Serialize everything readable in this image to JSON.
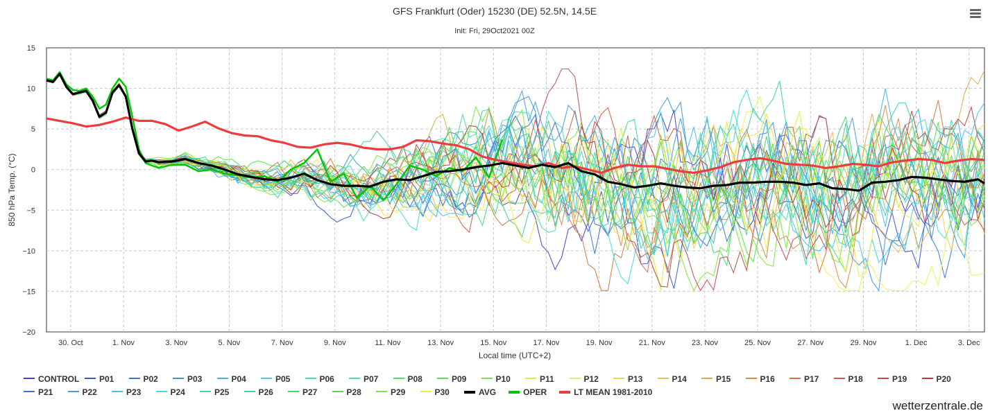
{
  "menu": {
    "icon": "hamburger-menu-icon"
  },
  "credit": "wetterzentrale.de",
  "chart_data": {
    "type": "line",
    "title": "GFS Frankfurt (Oder) 15230 (DE) 52.5N, 14.5E",
    "subtitle": "Init: Fri, 29Oct2021 00Z",
    "xlabel": "Local time (UTC+2)",
    "ylabel": "850 hPa Temp. (°C)",
    "ylim": [
      -20,
      15
    ],
    "yticks": [
      "15",
      "10",
      "5",
      "0",
      "−5",
      "−10",
      "−15",
      "−20"
    ],
    "xlim": [
      "2021-10-29T02:00",
      "2021-12-03T14:00"
    ],
    "xticks": [
      {
        "label": "30. Oct",
        "date": "2021-10-30"
      },
      {
        "label": "1. Nov",
        "date": "2021-11-01"
      },
      {
        "label": "3. Nov",
        "date": "2021-11-03"
      },
      {
        "label": "5. Nov",
        "date": "2021-11-05"
      },
      {
        "label": "7. Nov",
        "date": "2021-11-07"
      },
      {
        "label": "9. Nov",
        "date": "2021-11-09"
      },
      {
        "label": "11. Nov",
        "date": "2021-11-11"
      },
      {
        "label": "13. Nov",
        "date": "2021-11-13"
      },
      {
        "label": "15. Nov",
        "date": "2021-11-15"
      },
      {
        "label": "17. Nov",
        "date": "2021-11-17"
      },
      {
        "label": "19. Nov",
        "date": "2021-11-19"
      },
      {
        "label": "21. Nov",
        "date": "2021-11-21"
      },
      {
        "label": "23. Nov",
        "date": "2021-11-23"
      },
      {
        "label": "25. Nov",
        "date": "2021-11-25"
      },
      {
        "label": "27. Nov",
        "date": "2021-11-27"
      },
      {
        "label": "29. Nov",
        "date": "2021-11-29"
      },
      {
        "label": "1. Dec",
        "date": "2021-12-01"
      },
      {
        "label": "3. Dec",
        "date": "2021-12-03"
      }
    ],
    "grid": true,
    "legend_position": "bottom",
    "ensemble_members": {
      "names": [
        "CONTROL",
        "P01",
        "P02",
        "P03",
        "P04",
        "P05",
        "P06",
        "P07",
        "P08",
        "P09",
        "P10",
        "P11",
        "P12",
        "P13",
        "P14",
        "P15",
        "P16",
        "P17",
        "P18",
        "P19",
        "P20",
        "P21",
        "P22",
        "P23",
        "P24",
        "P25",
        "P26",
        "P27",
        "P28",
        "P29",
        "P30"
      ],
      "colors": [
        "#4a3fc9",
        "#3a55d6",
        "#3f74d6",
        "#3f96d9",
        "#3ab6e0",
        "#3fd0e8",
        "#3fe0d0",
        "#3fe6a8",
        "#3fe07a",
        "#4ce84a",
        "#7ae83a",
        "#e6ea3a",
        "#f0ee58",
        "#e8d84a",
        "#e8c04e",
        "#e0a84a",
        "#d88c3e",
        "#d8743a",
        "#cc5a3e",
        "#c04a44",
        "#b43a3a",
        "#3f6fd6",
        "#3f9fe0",
        "#40c0f0",
        "#40dcd6",
        "#3ed6b6",
        "#3ed49a",
        "#3ed47a",
        "#5ad64a",
        "#8ee040",
        "#ecec40"
      ]
    },
    "series": [
      {
        "name": "AVG",
        "color": "#000000",
        "x": [
          "2021-10-29T02:00",
          "2021-10-29T08:00",
          "2021-10-29T14:00",
          "2021-10-29T20:00",
          "2021-10-30T02:00",
          "2021-10-30T08:00",
          "2021-10-30T14:00",
          "2021-10-30T20:00",
          "2021-10-31T02:00",
          "2021-10-31T08:00",
          "2021-10-31T14:00",
          "2021-10-31T20:00",
          "2021-11-01T02:00",
          "2021-11-01T08:00",
          "2021-11-01T14:00",
          "2021-11-01T20:00",
          "2021-11-02T02:00",
          "2021-11-02T08:00",
          "2021-11-02T20:00",
          "2021-11-03T08:00",
          "2021-11-03T20:00",
          "2021-11-04T08:00",
          "2021-11-04T20:00",
          "2021-11-05T08:00",
          "2021-11-05T20:00",
          "2021-11-06T08:00",
          "2021-11-06T20:00",
          "2021-11-07T08:00",
          "2021-11-07T20:00",
          "2021-11-08T08:00",
          "2021-11-08T20:00",
          "2021-11-09T08:00",
          "2021-11-09T20:00",
          "2021-11-10T08:00",
          "2021-11-10T20:00",
          "2021-11-11T08:00",
          "2021-11-11T20:00",
          "2021-11-12T08:00",
          "2021-11-12T20:00",
          "2021-11-13T08:00",
          "2021-11-13T20:00",
          "2021-11-14T08:00",
          "2021-11-14T20:00",
          "2021-11-15T08:00",
          "2021-11-15T20:00",
          "2021-11-16T08:00",
          "2021-11-16T20:00",
          "2021-11-17T08:00",
          "2021-11-17T20:00",
          "2021-11-18T08:00",
          "2021-11-18T20:00",
          "2021-11-19T08:00",
          "2021-11-19T20:00",
          "2021-11-20T08:00",
          "2021-11-20T20:00",
          "2021-11-21T08:00",
          "2021-11-21T20:00",
          "2021-11-22T08:00",
          "2021-11-22T20:00",
          "2021-11-23T08:00",
          "2021-11-23T20:00",
          "2021-11-24T08:00",
          "2021-11-24T20:00",
          "2021-11-25T08:00",
          "2021-11-25T20:00",
          "2021-11-26T08:00",
          "2021-11-26T20:00",
          "2021-11-27T08:00",
          "2021-11-27T20:00",
          "2021-11-28T08:00",
          "2021-11-28T20:00",
          "2021-11-29T08:00",
          "2021-11-29T20:00",
          "2021-11-30T08:00",
          "2021-11-30T20:00",
          "2021-12-01T08:00",
          "2021-12-01T20:00",
          "2021-12-02T08:00",
          "2021-12-02T20:00",
          "2021-12-03T08:00",
          "2021-12-03T14:00"
        ],
        "values": [
          11.0,
          10.8,
          11.8,
          10.2,
          9.3,
          9.5,
          9.7,
          8.5,
          6.5,
          7.0,
          9.5,
          10.4,
          9.0,
          5.0,
          2.0,
          1.0,
          1.1,
          0.9,
          1.0,
          1.3,
          0.8,
          0.5,
          0.0,
          -0.6,
          -0.9,
          -1.2,
          -1.3,
          -1.0,
          -0.5,
          -1.3,
          -1.8,
          -2.0,
          -2.0,
          -2.1,
          -1.5,
          -1.2,
          -1.3,
          -0.8,
          -0.3,
          -0.2,
          0.0,
          0.3,
          0.5,
          0.8,
          0.5,
          0.2,
          0.6,
          0.3,
          0.8,
          -0.2,
          -0.6,
          -1.5,
          -1.8,
          -2.2,
          -2.0,
          -1.7,
          -2.0,
          -2.2,
          -2.3,
          -2.0,
          -1.9,
          -1.6,
          -1.6,
          -1.5,
          -1.5,
          -1.6,
          -1.9,
          -1.7,
          -2.3,
          -2.4,
          -2.6,
          -1.6,
          -1.5,
          -1.3,
          -0.9,
          -1.0,
          -1.2,
          -1.4,
          -1.5,
          -1.2,
          -1.7
        ]
      },
      {
        "name": "OPER",
        "color": "#00c800",
        "x": [
          "2021-10-29T02:00",
          "2021-10-29T08:00",
          "2021-10-29T14:00",
          "2021-10-29T20:00",
          "2021-10-30T02:00",
          "2021-10-30T08:00",
          "2021-10-30T14:00",
          "2021-10-30T20:00",
          "2021-10-31T02:00",
          "2021-10-31T08:00",
          "2021-10-31T14:00",
          "2021-10-31T20:00",
          "2021-11-01T02:00",
          "2021-11-01T08:00",
          "2021-11-01T14:00",
          "2021-11-01T20:00",
          "2021-11-02T02:00",
          "2021-11-02T08:00",
          "2021-11-02T20:00",
          "2021-11-03T08:00",
          "2021-11-03T20:00",
          "2021-11-04T08:00",
          "2021-11-04T20:00",
          "2021-11-05T08:00",
          "2021-11-05T20:00",
          "2021-11-06T08:00",
          "2021-11-06T20:00",
          "2021-11-07T08:00",
          "2021-11-07T20:00",
          "2021-11-08T08:00",
          "2021-11-08T20:00",
          "2021-11-09T08:00",
          "2021-11-09T20:00",
          "2021-11-10T08:00",
          "2021-11-10T20:00",
          "2021-11-11T08:00",
          "2021-11-11T20:00",
          "2021-11-12T08:00",
          "2021-11-12T20:00",
          "2021-11-13T08:00",
          "2021-11-13T20:00",
          "2021-11-14T08:00",
          "2021-11-14T20:00",
          "2021-11-15T08:00"
        ],
        "values": [
          11.2,
          11.0,
          12.0,
          10.5,
          9.8,
          9.7,
          10.0,
          9.0,
          7.5,
          8.0,
          10.0,
          11.2,
          10.2,
          6.5,
          2.5,
          0.8,
          0.5,
          0.2,
          0.6,
          0.6,
          -0.2,
          0.0,
          -0.5,
          -0.7,
          -1.0,
          -0.8,
          -1.5,
          0.0,
          0.8,
          2.5,
          -1.5,
          -0.5,
          -3.5,
          -2.0,
          -3.8,
          -1.8,
          0.5,
          0.0,
          -0.8,
          0.2,
          -0.2,
          1.5,
          -1.0,
          3.7
        ]
      },
      {
        "name": "LT MEAN 1981-2010",
        "color": "#ee3b3b",
        "x": [
          "2021-10-29T02:00",
          "2021-10-29T14:00",
          "2021-10-30T02:00",
          "2021-10-30T14:00",
          "2021-10-31T02:00",
          "2021-10-31T14:00",
          "2021-11-01T02:00",
          "2021-11-01T14:00",
          "2021-11-02T02:00",
          "2021-11-02T14:00",
          "2021-11-03T02:00",
          "2021-11-03T14:00",
          "2021-11-04T02:00",
          "2021-11-04T14:00",
          "2021-11-05T02:00",
          "2021-11-05T14:00",
          "2021-11-06T02:00",
          "2021-11-06T14:00",
          "2021-11-07T02:00",
          "2021-11-07T14:00",
          "2021-11-08T02:00",
          "2021-11-08T14:00",
          "2021-11-09T02:00",
          "2021-11-09T14:00",
          "2021-11-10T02:00",
          "2021-11-10T14:00",
          "2021-11-11T02:00",
          "2021-11-11T14:00",
          "2021-11-12T02:00",
          "2021-11-12T14:00",
          "2021-11-13T02:00",
          "2021-11-13T14:00",
          "2021-11-14T02:00",
          "2021-11-14T14:00",
          "2021-11-15T02:00",
          "2021-11-15T14:00",
          "2021-11-16T02:00",
          "2021-11-16T14:00",
          "2021-11-17T02:00",
          "2021-11-17T14:00",
          "2021-11-18T02:00",
          "2021-11-18T14:00",
          "2021-11-19T02:00",
          "2021-11-19T14:00",
          "2021-11-20T02:00",
          "2021-11-20T14:00",
          "2021-11-21T02:00",
          "2021-11-21T14:00",
          "2021-11-22T02:00",
          "2021-11-22T14:00",
          "2021-11-23T02:00",
          "2021-11-23T14:00",
          "2021-11-24T02:00",
          "2021-11-24T14:00",
          "2021-11-25T02:00",
          "2021-11-25T14:00",
          "2021-11-26T02:00",
          "2021-11-26T14:00",
          "2021-11-27T02:00",
          "2021-11-27T14:00",
          "2021-11-28T02:00",
          "2021-11-28T14:00",
          "2021-11-29T02:00",
          "2021-11-29T14:00",
          "2021-11-30T02:00",
          "2021-11-30T14:00",
          "2021-12-01T02:00",
          "2021-12-01T14:00",
          "2021-12-02T02:00",
          "2021-12-02T14:00",
          "2021-12-03T02:00",
          "2021-12-03T14:00"
        ],
        "values": [
          6.3,
          6.0,
          5.7,
          5.3,
          5.5,
          5.9,
          6.4,
          6.0,
          6.0,
          5.6,
          4.8,
          5.3,
          5.9,
          5.1,
          4.5,
          4.2,
          4.1,
          3.6,
          3.3,
          2.8,
          2.7,
          3.1,
          3.3,
          3.1,
          2.7,
          2.5,
          2.5,
          2.8,
          3.6,
          3.5,
          3.2,
          3.0,
          2.5,
          1.6,
          1.2,
          0.9,
          0.6,
          0.4,
          0.8,
          0.2,
          0.4,
          0.0,
          -0.4,
          0.2,
          0.6,
          0.4,
          0.4,
          0.1,
          -0.2,
          -0.4,
          -0.1,
          0.3,
          0.9,
          1.2,
          1.4,
          1.1,
          0.7,
          0.6,
          0.5,
          0.2,
          0.4,
          0.7,
          0.6,
          0.4,
          0.9,
          1.1,
          1.3,
          1.2,
          0.8,
          1.1,
          1.3,
          1.2
        ]
      }
    ]
  }
}
